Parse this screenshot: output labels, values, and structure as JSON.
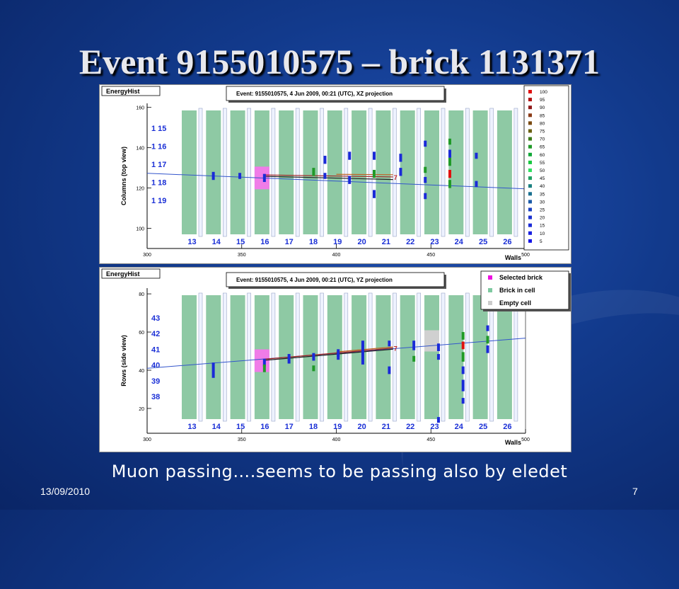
{
  "slide": {
    "title": "Event 9155010575 – brick 1131371",
    "caption": "Muon passing….seems to be passing also by eledet",
    "date": "13/09/2010",
    "page": "7"
  },
  "colors": {
    "brick": "#8ec9a4",
    "selected": "#f07ce8",
    "empty": "#d0d0d0",
    "track": "#3355cc",
    "hits": "#1426b8",
    "wall_labels": "#1a2fd6"
  },
  "chart_data": [
    {
      "type": "scatter",
      "panel_label": "EnergyHist",
      "title": "Event: 9155010575,  4 Jun 2009, 00:21 (UTC), XZ projection",
      "xlabel": "Walls",
      "ylabel": "Columns (top view)",
      "xlim": [
        300,
        500
      ],
      "ylim": [
        90,
        162
      ],
      "x_ticks": [
        300,
        350,
        400,
        450,
        500
      ],
      "y_ticks": [
        100,
        120,
        140,
        160
      ],
      "walls": [
        "13",
        "14",
        "15",
        "16",
        "17",
        "18",
        "19",
        "20",
        "21",
        "22",
        "23",
        "24",
        "25",
        "26"
      ],
      "row_labels": [
        "1 15",
        "1 16",
        "1 17",
        "1 18",
        "1 19"
      ],
      "selected_wall_index": 3,
      "empty_wall_index": -1,
      "legend": [
        "100",
        "95",
        "90",
        "85",
        "80",
        "75",
        "70",
        "65",
        "60",
        "55",
        "50",
        "45",
        "40",
        "35",
        "30",
        "25",
        "20",
        "15",
        "10",
        "5"
      ],
      "legend_colors": [
        "#e01010",
        "#b01010",
        "#901818",
        "#8a3a16",
        "#7a4a10",
        "#6a6010",
        "#3a7a18",
        "#209a28",
        "#10a838",
        "#18c840",
        "#30e060",
        "#20a060",
        "#1a8080",
        "#1a7090",
        "#1a5aa8",
        "#1a40c0",
        "#1a30d0",
        "#1a2ad8",
        "#1a20e0",
        "#1414e8"
      ],
      "fit_line": [
        [
          300,
          127.3
        ],
        [
          500,
          119.6
        ]
      ],
      "hits": [
        {
          "x": 335,
          "y": 126,
          "h": 4,
          "c": "#1a2ad8"
        },
        {
          "x": 349,
          "y": 126,
          "h": 3,
          "c": "#1a2ad8"
        },
        {
          "x": 362,
          "y": 125,
          "h": 4,
          "c": "#1a2ad8"
        },
        {
          "x": 388,
          "y": 128,
          "h": 4,
          "c": "#209a28"
        },
        {
          "x": 394,
          "y": 134,
          "h": 4,
          "c": "#1a2ad8"
        },
        {
          "x": 394,
          "y": 126,
          "h": 3,
          "c": "#1a2ad8"
        },
        {
          "x": 407,
          "y": 136,
          "h": 4,
          "c": "#1a2ad8"
        },
        {
          "x": 407,
          "y": 124,
          "h": 4,
          "c": "#1a2ad8"
        },
        {
          "x": 420,
          "y": 136,
          "h": 4,
          "c": "#1a2ad8"
        },
        {
          "x": 420,
          "y": 127,
          "h": 4,
          "c": "#209a28"
        },
        {
          "x": 420,
          "y": 117,
          "h": 4,
          "c": "#1a2ad8"
        },
        {
          "x": 434,
          "y": 135,
          "h": 4,
          "c": "#1a2ad8"
        },
        {
          "x": 434,
          "y": 128,
          "h": 4,
          "c": "#1a2ad8"
        },
        {
          "x": 447,
          "y": 142,
          "h": 3,
          "c": "#1a2ad8"
        },
        {
          "x": 447,
          "y": 129,
          "h": 3,
          "c": "#209a28"
        },
        {
          "x": 447,
          "y": 124,
          "h": 3,
          "c": "#1a2ad8"
        },
        {
          "x": 447,
          "y": 116,
          "h": 3,
          "c": "#1a2ad8"
        },
        {
          "x": 460,
          "y": 143,
          "h": 3,
          "c": "#209a28"
        },
        {
          "x": 460,
          "y": 137,
          "h": 4,
          "c": "#1a2ad8"
        },
        {
          "x": 460,
          "y": 133,
          "h": 4,
          "c": "#209a28"
        },
        {
          "x": 460,
          "y": 127,
          "h": 4,
          "c": "#e01010"
        },
        {
          "x": 460,
          "y": 122,
          "h": 4,
          "c": "#209a28"
        },
        {
          "x": 474,
          "y": 136,
          "h": 3,
          "c": "#1a2ad8"
        },
        {
          "x": 474,
          "y": 122,
          "h": 3,
          "c": "#1a2ad8"
        }
      ],
      "tracks": [
        {
          "x1": 362,
          "y1": 126.5,
          "x2": 430,
          "y2": 125.5,
          "c": "#a02020"
        },
        {
          "x1": 362,
          "y1": 125.8,
          "x2": 430,
          "y2": 124.2,
          "c": "#202020"
        },
        {
          "x1": 400,
          "y1": 126.8,
          "x2": 430,
          "y2": 126.6,
          "c": "#c06020"
        }
      ]
    },
    {
      "type": "scatter",
      "panel_label": "EnergyHist",
      "title": "Event: 9155010575,  4 Jun 2009, 00:21 (UTC), YZ projection",
      "xlabel": "Walls",
      "ylabel": "Rows (side view)",
      "xlim": [
        300,
        500
      ],
      "ylim": [
        7,
        83
      ],
      "x_ticks": [
        300,
        350,
        400,
        450,
        500
      ],
      "y_ticks": [
        20,
        40,
        60,
        80
      ],
      "walls": [
        "13",
        "14",
        "15",
        "16",
        "17",
        "18",
        "19",
        "20",
        "21",
        "22",
        "23",
        "24",
        "25",
        "26"
      ],
      "row_labels": [
        "43",
        "42",
        "41",
        "40",
        "39",
        "38"
      ],
      "selected_wall_index": 3,
      "empty_wall_index": 10,
      "legend": [
        "Selected brick",
        "Brick in cell",
        "Empty cell"
      ],
      "legend_colors": [
        "#ee10e0",
        "#7ec9a0",
        "#cccccc"
      ],
      "fit_line": [
        [
          300,
          41
        ],
        [
          500,
          56.8
        ]
      ],
      "hits": [
        {
          "x": 335,
          "y": 40,
          "h": 8,
          "c": "#1a2ad8"
        },
        {
          "x": 362,
          "y": 44,
          "h": 4,
          "c": "#1a2ad8"
        },
        {
          "x": 362,
          "y": 41,
          "h": 4,
          "c": "#209a28"
        },
        {
          "x": 375,
          "y": 46,
          "h": 5,
          "c": "#1a2ad8"
        },
        {
          "x": 388,
          "y": 47,
          "h": 4,
          "c": "#1a2ad8"
        },
        {
          "x": 388,
          "y": 41,
          "h": 3,
          "c": "#209a28"
        },
        {
          "x": 401,
          "y": 49,
          "h": 4,
          "c": "#1a2ad8"
        },
        {
          "x": 401,
          "y": 47,
          "h": 3,
          "c": "#1a2ad8"
        },
        {
          "x": 414,
          "y": 54,
          "h": 3,
          "c": "#1a2ad8"
        },
        {
          "x": 414,
          "y": 48,
          "h": 10,
          "c": "#1a2ad8"
        },
        {
          "x": 428,
          "y": 54,
          "h": 3,
          "c": "#1a2ad8"
        },
        {
          "x": 428,
          "y": 40,
          "h": 4,
          "c": "#1a2ad8"
        },
        {
          "x": 441,
          "y": 53,
          "h": 5,
          "c": "#1a2ad8"
        },
        {
          "x": 441,
          "y": 46,
          "h": 3,
          "c": "#209a28"
        },
        {
          "x": 454,
          "y": 52,
          "h": 4,
          "c": "#1a2ad8"
        },
        {
          "x": 454,
          "y": 47,
          "h": 3,
          "c": "#1a2ad8"
        },
        {
          "x": 454,
          "y": 14,
          "h": 3,
          "c": "#1a2ad8"
        },
        {
          "x": 467,
          "y": 58,
          "h": 4,
          "c": "#209a28"
        },
        {
          "x": 467,
          "y": 53,
          "h": 4,
          "c": "#e01010"
        },
        {
          "x": 467,
          "y": 47,
          "h": 5,
          "c": "#209a28"
        },
        {
          "x": 467,
          "y": 40,
          "h": 4,
          "c": "#1a2ad8"
        },
        {
          "x": 467,
          "y": 32,
          "h": 6,
          "c": "#1a2ad8"
        },
        {
          "x": 467,
          "y": 24,
          "h": 3,
          "c": "#1a2ad8"
        },
        {
          "x": 480,
          "y": 62,
          "h": 3,
          "c": "#1a2ad8"
        },
        {
          "x": 480,
          "y": 56,
          "h": 4,
          "c": "#209a28"
        },
        {
          "x": 480,
          "y": 51,
          "h": 4,
          "c": "#1a2ad8"
        }
      ],
      "tracks": [
        {
          "x1": 362,
          "y1": 45.8,
          "x2": 430,
          "y2": 51.6,
          "c": "#a02020"
        },
        {
          "x1": 362,
          "y1": 45.2,
          "x2": 430,
          "y2": 51.0,
          "c": "#202020"
        },
        {
          "x1": 400,
          "y1": 49.6,
          "x2": 430,
          "y2": 52.2,
          "c": "#c06020"
        }
      ]
    }
  ]
}
